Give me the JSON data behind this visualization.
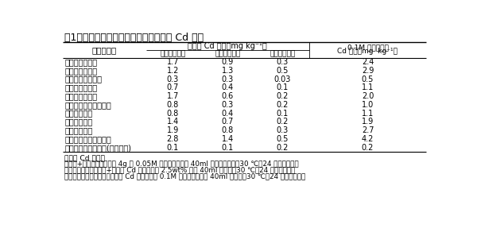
{
  "title": "表1　ポット栽培試験前土壌中の形態別 Cd 濃度",
  "header_col1": "土壌タイプ",
  "header_group": "形態別 Cd 濃度（mg kg⁻¹）",
  "header_sub1": "水溶・交換性",
  "header_sub2": "無機物結合性",
  "header_sub3": "有機物結合性",
  "header_hcl_line1": "0.1M 塩酸可溶性",
  "header_hcl_line2": "Cd 濃度（mg  kg⁻¹）",
  "soil_types": [
    "礫質灰色低地土",
    "礫質灰色低地土",
    "中粗粒灰色低地土",
    "細粒灰色低地土",
    "細粒灰色低地土",
    "下層黒ボク灰色低地土",
    "細粒グライ土",
    "礫質グライ土",
    "多湿黒ボク土",
    "腐植質黒ボクグライ土",
    "腐植質多湿黒ボク土(非汚染土)"
  ],
  "water_exchangeable": [
    "1.7",
    "1.2",
    "0.3",
    "0.7",
    "1.7",
    "0.8",
    "0.8",
    "1.4",
    "1.9",
    "2.8",
    "0.1"
  ],
  "inorganic_bound": [
    "0.9",
    "1.3",
    "0.3",
    "0.4",
    "0.6",
    "0.3",
    "0.4",
    "0.7",
    "0.8",
    "1.4",
    "0.1"
  ],
  "organic_bound": [
    "0.3",
    "0.5",
    "0.03",
    "0.1",
    "0.2",
    "0.2",
    "0.1",
    "0.2",
    "0.3",
    "0.5",
    "0.2"
  ],
  "hcl_soluble": [
    "2.4",
    "2.9",
    "0.5",
    "1.1",
    "2.0",
    "1.0",
    "1.1",
    "1.9",
    "2.7",
    "4.2",
    "0.2"
  ],
  "footnote_title": "形態別 Cd 分析法",
  "footnote1": "　水溶+交換性：風乾細土 4g に 0.05M 塩化カルシウム 40ml を加えて抽出（30 ℃，24 時間振とう）",
  "footnote2": "　無機物結合性：水溶+交換性 Cd 抽出残さを 2.5wt% 酢酸 40ml で抽出（30 ℃，24 時間振とう）",
  "footnote3": "　有機物結合性：無機物結合性 Cd 抽出残さを 0.1M ピロリン酸加水 40ml で抽出（30 ℃，24 時間振とう）",
  "bg_color": "#ffffff",
  "text_color": "#000000"
}
